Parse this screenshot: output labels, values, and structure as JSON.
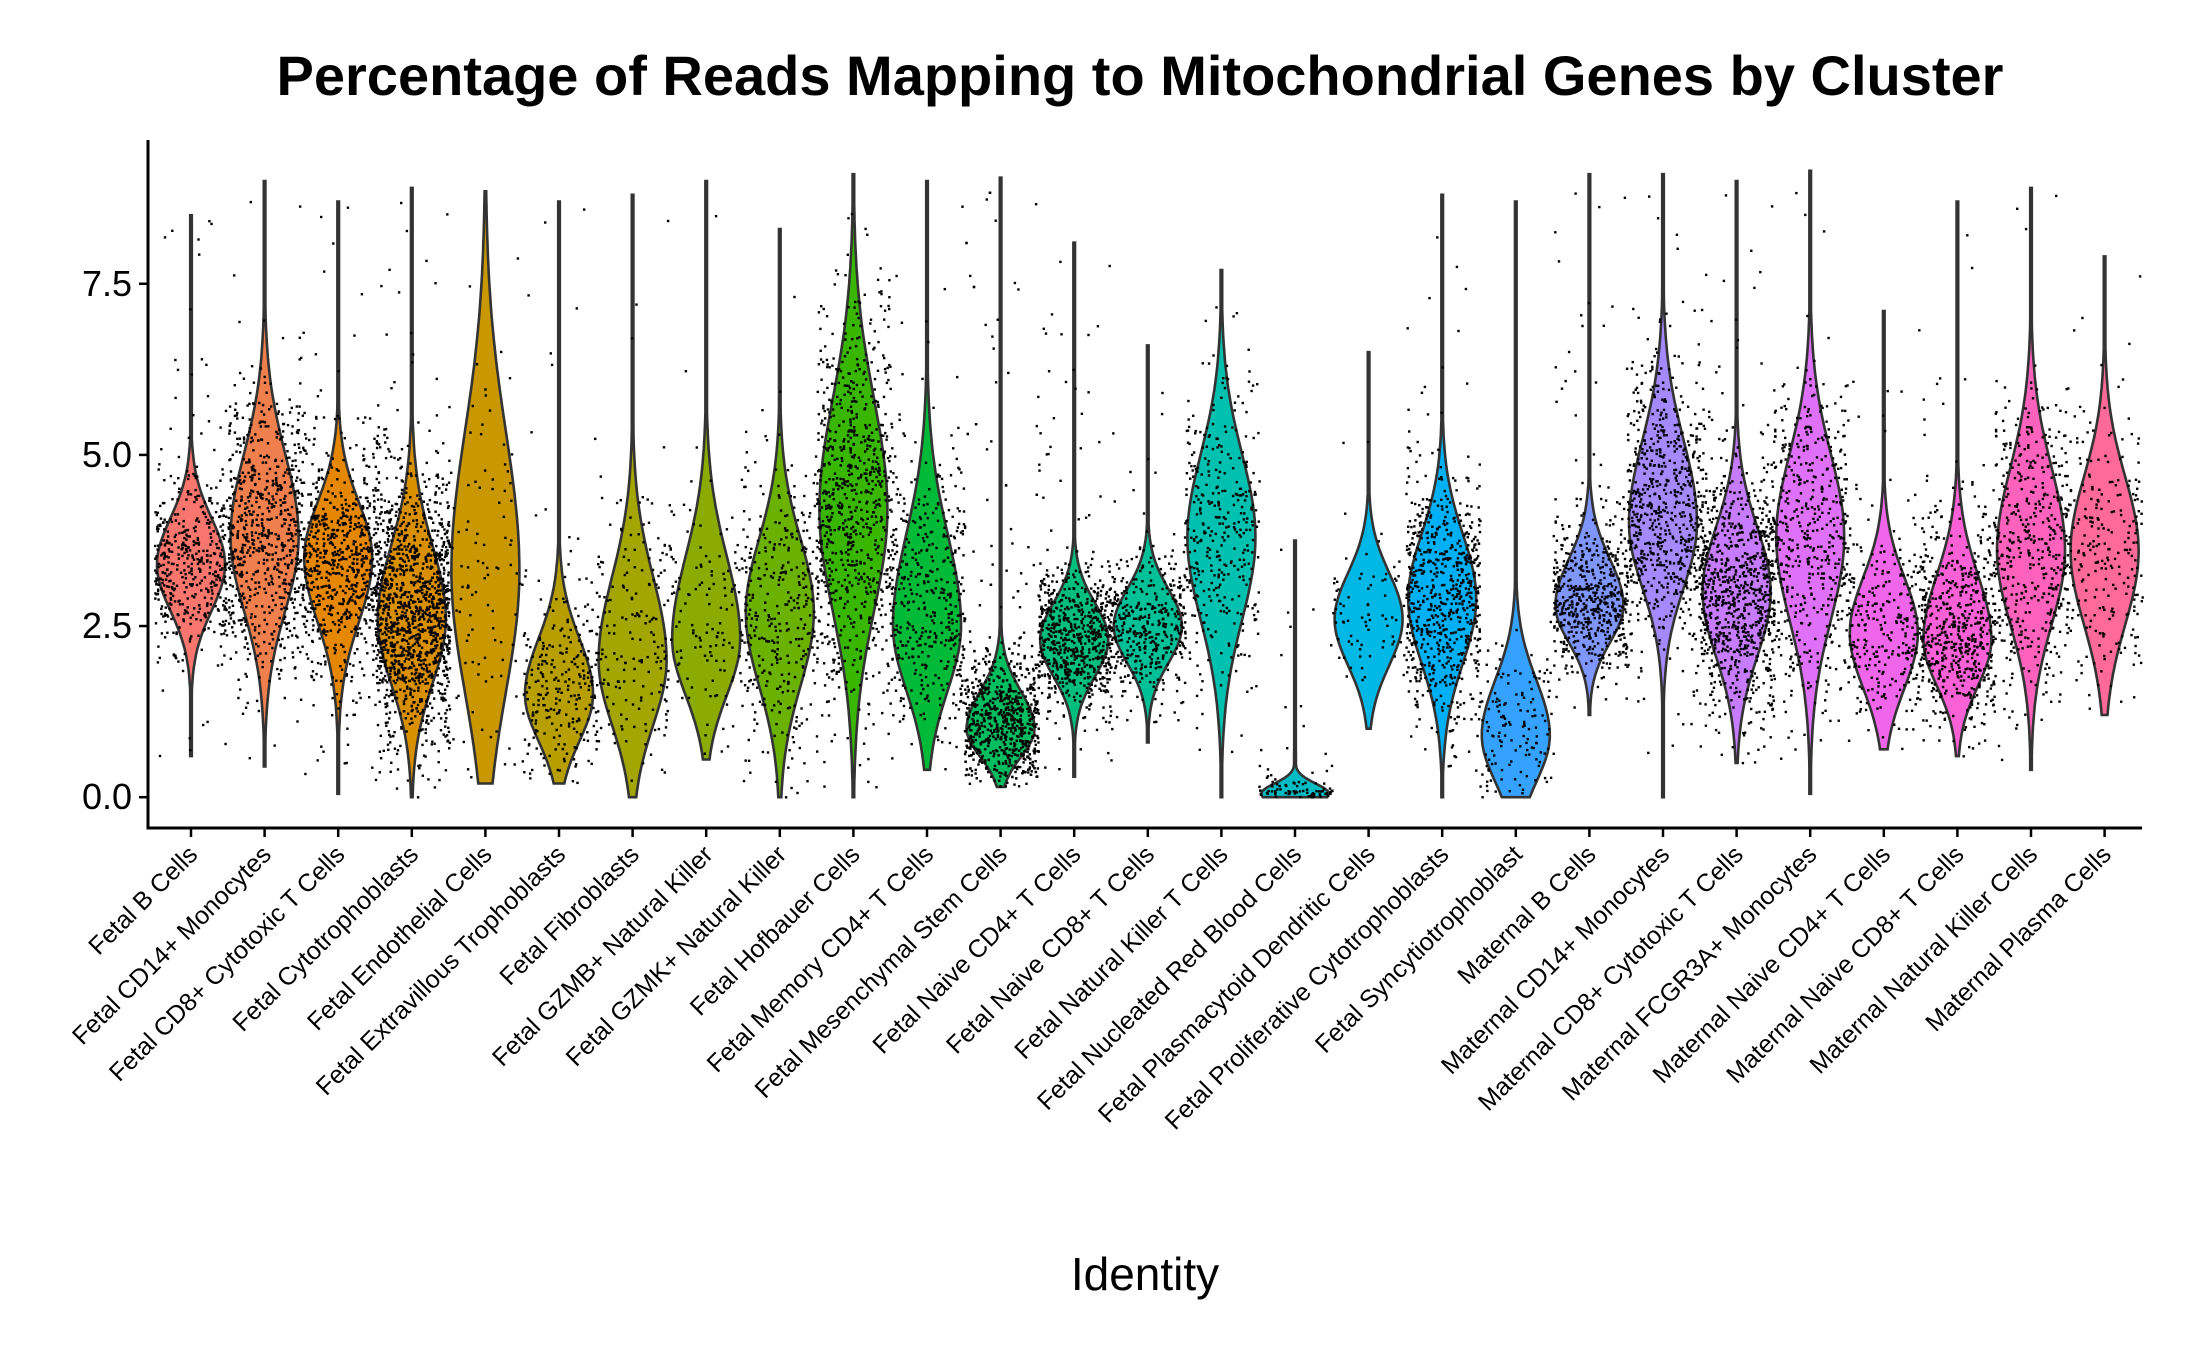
{
  "chart_data": {
    "type": "violin",
    "title": "Percentage of Reads Mapping to Mitochondrial Genes by Cluster",
    "xlabel": "Identity",
    "ylabel": "",
    "ylim": [
      -0.45,
      9.6
    ],
    "yticks": [
      0.0,
      2.5,
      5.0,
      7.5
    ],
    "ytick_labels": [
      "0.0",
      "2.5",
      "5.0",
      "7.5"
    ],
    "grid": false,
    "legend": "none",
    "series": [
      {
        "category": "Fetal B Cells",
        "color": "#F8766D",
        "min": 0.6,
        "max": 8.5,
        "median": 3.2,
        "q1": 2.7,
        "q3": 3.7,
        "mode": 3.4,
        "n": 900
      },
      {
        "category": "Fetal CD14+ Monocytes",
        "color": "#F07F4E",
        "min": 0.45,
        "max": 9.0,
        "median": 3.6,
        "q1": 2.8,
        "q3": 4.5,
        "mode": 3.8,
        "n": 1300
      },
      {
        "category": "Fetal CD8+ Cytotoxic T Cells",
        "color": "#E58700",
        "min": 0.05,
        "max": 8.7,
        "median": 3.5,
        "q1": 2.8,
        "q3": 4.1,
        "mode": 3.5,
        "n": 1300
      },
      {
        "category": "Fetal Cytotrophoblasts",
        "color": "#D89000",
        "min": 0.0,
        "max": 8.9,
        "median": 2.8,
        "q1": 2.1,
        "q3": 3.6,
        "mode": 2.6,
        "n": 2600
      },
      {
        "category": "Fetal Endothelial Cells",
        "color": "#C99800",
        "min": 0.2,
        "max": 8.85,
        "median": 3.8,
        "q1": 2.5,
        "q3": 5.3,
        "mode": 3.3,
        "n": 180
      },
      {
        "category": "Fetal Extravillous Trophoblasts",
        "color": "#B79F00",
        "min": 0.2,
        "max": 8.7,
        "median": 1.5,
        "q1": 1.0,
        "q3": 2.1,
        "mode": 1.5,
        "n": 480
      },
      {
        "category": "Fetal Fibroblasts",
        "color": "#A3A500",
        "min": 0.0,
        "max": 8.8,
        "median": 2.1,
        "q1": 1.4,
        "q3": 3.0,
        "mode": 2.0,
        "n": 340
      },
      {
        "category": "Fetal GZMB+ Natural Killer",
        "color": "#8BAB00",
        "min": 0.55,
        "max": 9.0,
        "median": 2.5,
        "q1": 1.9,
        "q3": 3.4,
        "mode": 2.3,
        "n": 240
      },
      {
        "category": "Fetal GZMK+ Natural Killer",
        "color": "#6BB100",
        "min": 0.0,
        "max": 8.3,
        "median": 2.6,
        "q1": 1.8,
        "q3": 3.4,
        "mode": 2.7,
        "n": 650
      },
      {
        "category": "Fetal Hofbauer Cells",
        "color": "#39B600",
        "min": 0.0,
        "max": 9.1,
        "median": 4.4,
        "q1": 3.3,
        "q3": 5.6,
        "mode": 4.2,
        "n": 1400
      },
      {
        "category": "Fetal Memory CD4+ T Cells",
        "color": "#00BA38",
        "min": 0.4,
        "max": 9.0,
        "median": 2.6,
        "q1": 1.9,
        "q3": 3.6,
        "mode": 2.5,
        "n": 800
      },
      {
        "category": "Fetal Mesenchymal Stem Cells",
        "color": "#00BD5F",
        "min": 0.15,
        "max": 9.05,
        "median": 1.1,
        "q1": 0.8,
        "q3": 1.5,
        "mode": 1.0,
        "n": 1700
      },
      {
        "category": "Fetal Naive CD4+ T Cells",
        "color": "#00BF7D",
        "min": 0.3,
        "max": 8.1,
        "median": 2.3,
        "q1": 1.9,
        "q3": 2.7,
        "mode": 2.3,
        "n": 1300
      },
      {
        "category": "Fetal Naive CD8+ T Cells",
        "color": "#00C098",
        "min": 0.8,
        "max": 6.6,
        "median": 2.5,
        "q1": 2.1,
        "q3": 2.9,
        "mode": 2.5,
        "n": 750
      },
      {
        "category": "Fetal Natural Killer T Cells",
        "color": "#00C0AF",
        "min": 0.0,
        "max": 7.7,
        "median": 3.1,
        "q1": 2.2,
        "q3": 4.0,
        "mode": 3.8,
        "n": 650
      },
      {
        "category": "Fetal Nucleated Red Blood Cells",
        "color": "#00BDC4",
        "min": 0.0,
        "max": 3.75,
        "median": 0.05,
        "q1": 0.02,
        "q3": 0.12,
        "mode": 0.05,
        "n": 160
      },
      {
        "category": "Fetal Plasmacytoid Dendritic Cells",
        "color": "#00B8E5",
        "min": 1.0,
        "max": 6.5,
        "median": 2.7,
        "q1": 2.2,
        "q3": 3.2,
        "mode": 2.6,
        "n": 140
      },
      {
        "category": "Fetal Proliferative Cytotrophoblasts",
        "color": "#00B0F6",
        "min": 0.0,
        "max": 8.8,
        "median": 3.0,
        "q1": 2.3,
        "q3": 3.7,
        "mode": 2.9,
        "n": 1300
      },
      {
        "category": "Fetal Syncytiotrophoblast",
        "color": "#35A2FF",
        "min": 0.0,
        "max": 8.7,
        "median": 0.9,
        "q1": 0.4,
        "q3": 1.5,
        "mode": 0.9,
        "n": 260
      },
      {
        "category": "Maternal B Cells",
        "color": "#7F96FF",
        "min": 1.2,
        "max": 9.1,
        "median": 3.0,
        "q1": 2.6,
        "q3": 3.5,
        "mode": 2.8,
        "n": 1100
      },
      {
        "category": "Maternal CD14+ Monocytes",
        "color": "#A58AFF",
        "min": 0.0,
        "max": 9.1,
        "median": 3.9,
        "q1": 3.2,
        "q3": 4.8,
        "mode": 4.0,
        "n": 1300
      },
      {
        "category": "Maternal CD8+ Cytotoxic T Cells",
        "color": "#C77CFF",
        "min": 0.5,
        "max": 9.0,
        "median": 3.1,
        "q1": 2.4,
        "q3": 3.8,
        "mode": 3.0,
        "n": 1700
      },
      {
        "category": "Maternal FCGR3A+ Monocytes",
        "color": "#DF70F8",
        "min": 0.05,
        "max": 9.15,
        "median": 3.4,
        "q1": 2.5,
        "q3": 4.3,
        "mode": 3.8,
        "n": 900
      },
      {
        "category": "Maternal Naive CD4+ T Cells",
        "color": "#F066EA",
        "min": 0.7,
        "max": 7.1,
        "median": 2.5,
        "q1": 1.9,
        "q3": 3.1,
        "mode": 2.4,
        "n": 560
      },
      {
        "category": "Maternal Naive CD8+ T Cells",
        "color": "#FB61D7",
        "min": 0.6,
        "max": 8.7,
        "median": 2.3,
        "q1": 1.8,
        "q3": 3.0,
        "mode": 2.3,
        "n": 1100
      },
      {
        "category": "Maternal Natural Killer Cells",
        "color": "#FF62BC",
        "min": 0.4,
        "max": 8.9,
        "median": 3.4,
        "q1": 2.6,
        "q3": 4.3,
        "mode": 3.6,
        "n": 850
      },
      {
        "category": "Maternal Plasma Cells",
        "color": "#FF6A98",
        "min": 1.2,
        "max": 7.9,
        "median": 3.6,
        "q1": 2.8,
        "q3": 4.4,
        "mode": 3.6,
        "n": 450
      }
    ]
  }
}
